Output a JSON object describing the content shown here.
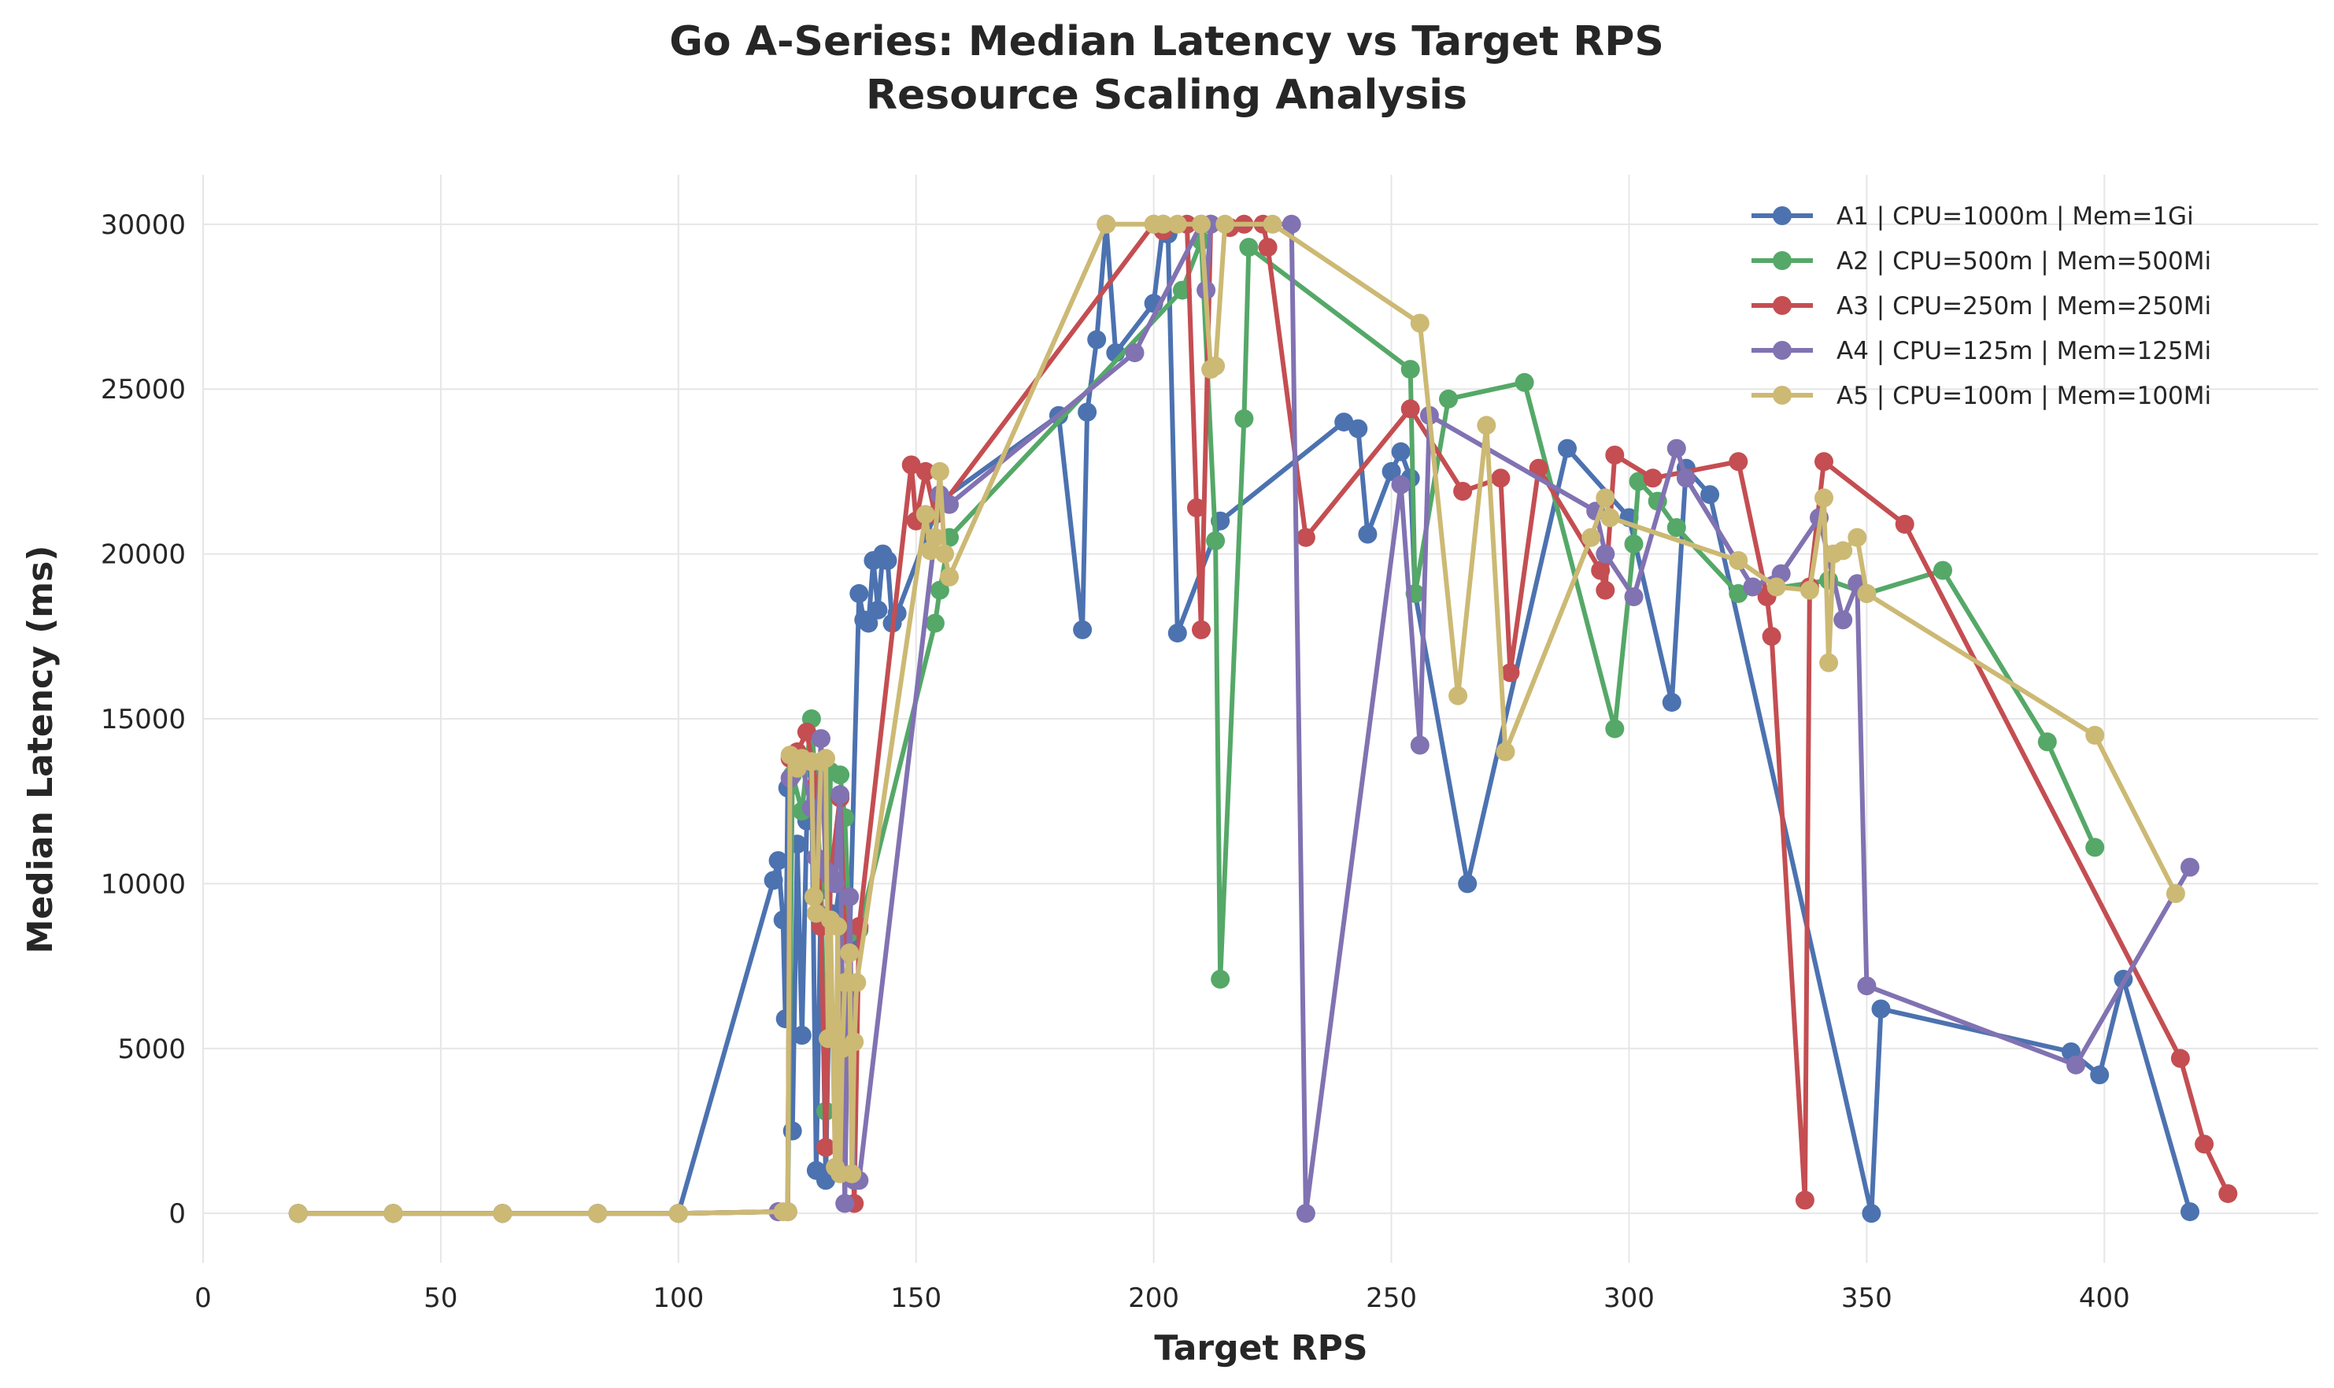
{
  "chart_data": {
    "type": "line",
    "title": "Go A-Series: Median Latency vs Target RPS",
    "subtitle": "Resource Scaling Analysis",
    "xlabel": "Target RPS",
    "ylabel": "Median Latency (ms)",
    "xlim": [
      0,
      445
    ],
    "ylim": [
      -1500,
      31500
    ],
    "xticks": [
      "0",
      "50",
      "100",
      "150",
      "200",
      "250",
      "300",
      "350",
      "400"
    ],
    "yticks": [
      "0",
      "5000",
      "10000",
      "15000",
      "20000",
      "25000",
      "30000"
    ],
    "grid": true,
    "legend_position": "top-right",
    "series": [
      {
        "name": "A1 | CPU=1000m | Mem=1Gi",
        "color": "#4c72b0",
        "points": [
          [
            20,
            0
          ],
          [
            40,
            0
          ],
          [
            63,
            0
          ],
          [
            83,
            0
          ],
          [
            100,
            0
          ],
          [
            120,
            10100
          ],
          [
            121,
            10700
          ],
          [
            122,
            8900
          ],
          [
            122.5,
            5900
          ],
          [
            123,
            12900
          ],
          [
            124,
            2500
          ],
          [
            125,
            11200
          ],
          [
            126,
            5400
          ],
          [
            127,
            11900
          ],
          [
            128,
            13500
          ],
          [
            129,
            1300
          ],
          [
            130,
            9800
          ],
          [
            131,
            1000
          ],
          [
            132,
            9100
          ],
          [
            133,
            9000
          ],
          [
            134,
            10000
          ],
          [
            135,
            8300
          ],
          [
            136,
            8200
          ],
          [
            138,
            18800
          ],
          [
            139,
            18000
          ],
          [
            140,
            17900
          ],
          [
            141,
            19800
          ],
          [
            142,
            18300
          ],
          [
            143,
            20000
          ],
          [
            144,
            19800
          ],
          [
            145,
            17900
          ],
          [
            146,
            18200
          ],
          [
            155,
            21600
          ],
          [
            180,
            24200
          ],
          [
            185,
            17700
          ],
          [
            186,
            24300
          ],
          [
            188,
            26500
          ],
          [
            190,
            30000
          ],
          [
            192,
            26100
          ],
          [
            200,
            27600
          ],
          [
            202,
            30000
          ],
          [
            203,
            29700
          ],
          [
            205,
            17600
          ],
          [
            214,
            21000
          ],
          [
            240,
            24000
          ],
          [
            243,
            23800
          ],
          [
            245,
            20600
          ],
          [
            250,
            22500
          ],
          [
            252,
            23100
          ],
          [
            254,
            22300
          ],
          [
            255,
            18800
          ],
          [
            266,
            10000
          ],
          [
            287,
            23200
          ],
          [
            300,
            21100
          ],
          [
            309,
            15500
          ],
          [
            312,
            22600
          ],
          [
            317,
            21800
          ],
          [
            351,
            0
          ],
          [
            353,
            6200
          ],
          [
            393,
            4900
          ],
          [
            399,
            4200
          ],
          [
            404,
            7100
          ],
          [
            418,
            50
          ]
        ]
      },
      {
        "name": "A2 | CPU=500m | Mem=500Mi",
        "color": "#55a868",
        "points": [
          [
            20,
            0
          ],
          [
            40,
            0
          ],
          [
            63,
            0
          ],
          [
            83,
            0
          ],
          [
            100,
            0
          ],
          [
            121,
            50
          ],
          [
            123,
            50
          ],
          [
            124,
            13300
          ],
          [
            126,
            12200
          ],
          [
            128,
            15000
          ],
          [
            130,
            10100
          ],
          [
            131,
            3100
          ],
          [
            132,
            13400
          ],
          [
            134,
            13300
          ],
          [
            135,
            12000
          ],
          [
            136,
            8500
          ],
          [
            138,
            8600
          ],
          [
            154,
            17900
          ],
          [
            155,
            18900
          ],
          [
            157,
            20500
          ],
          [
            206,
            28000
          ],
          [
            210,
            29500
          ],
          [
            213,
            20400
          ],
          [
            214,
            7100
          ],
          [
            219,
            24100
          ],
          [
            220,
            29300
          ],
          [
            254,
            25600
          ],
          [
            255,
            18800
          ],
          [
            262,
            24700
          ],
          [
            278,
            25200
          ],
          [
            297,
            14700
          ],
          [
            301,
            20300
          ],
          [
            302,
            22200
          ],
          [
            306,
            21600
          ],
          [
            310,
            20800
          ],
          [
            323,
            18800
          ],
          [
            342,
            19200
          ],
          [
            350,
            18800
          ],
          [
            366,
            19500
          ],
          [
            388,
            14300
          ],
          [
            398,
            11100
          ]
        ]
      },
      {
        "name": "A3 | CPU=250m | Mem=250Mi",
        "color": "#c44e52",
        "points": [
          [
            20,
            0
          ],
          [
            40,
            0
          ],
          [
            63,
            0
          ],
          [
            83,
            0
          ],
          [
            100,
            0
          ],
          [
            121,
            50
          ],
          [
            123,
            50
          ],
          [
            123.5,
            13800
          ],
          [
            125,
            14000
          ],
          [
            127,
            14600
          ],
          [
            129,
            13000
          ],
          [
            130,
            8700
          ],
          [
            131,
            2000
          ],
          [
            132,
            10200
          ],
          [
            134,
            12600
          ],
          [
            135,
            8600
          ],
          [
            136,
            6800
          ],
          [
            137,
            300
          ],
          [
            138,
            8700
          ],
          [
            149,
            22700
          ],
          [
            150,
            21000
          ],
          [
            152,
            22500
          ],
          [
            154,
            21200
          ],
          [
            200,
            30000
          ],
          [
            202,
            29800
          ],
          [
            207,
            30000
          ],
          [
            209,
            21400
          ],
          [
            210,
            17700
          ],
          [
            212,
            30000
          ],
          [
            216,
            29900
          ],
          [
            219,
            30000
          ],
          [
            223,
            30000
          ],
          [
            224,
            29300
          ],
          [
            232,
            20500
          ],
          [
            254,
            24400
          ],
          [
            265,
            21900
          ],
          [
            273,
            22300
          ],
          [
            275,
            16400
          ],
          [
            281,
            22600
          ],
          [
            294,
            19500
          ],
          [
            295,
            18900
          ],
          [
            297,
            23000
          ],
          [
            305,
            22300
          ],
          [
            323,
            22800
          ],
          [
            329,
            18700
          ],
          [
            330,
            17500
          ],
          [
            337,
            400
          ],
          [
            338,
            19000
          ],
          [
            341,
            22800
          ],
          [
            358,
            20900
          ],
          [
            416,
            4700
          ],
          [
            421,
            2100
          ],
          [
            426,
            600
          ]
        ]
      },
      {
        "name": "A4 | CPU=125m | Mem=125Mi",
        "color": "#8172b2",
        "points": [
          [
            20,
            0
          ],
          [
            40,
            0
          ],
          [
            63,
            0
          ],
          [
            83,
            0
          ],
          [
            100,
            0
          ],
          [
            121,
            50
          ],
          [
            123,
            50
          ],
          [
            123.5,
            13200
          ],
          [
            126,
            13600
          ],
          [
            128,
            12300
          ],
          [
            129,
            10800
          ],
          [
            130,
            14400
          ],
          [
            131,
            10400
          ],
          [
            132,
            10200
          ],
          [
            133,
            10000
          ],
          [
            134,
            12700
          ],
          [
            135,
            300
          ],
          [
            136,
            9600
          ],
          [
            137,
            1000
          ],
          [
            138,
            1000
          ],
          [
            155,
            21800
          ],
          [
            157,
            21500
          ],
          [
            196,
            26100
          ],
          [
            210,
            30000
          ],
          [
            211,
            28000
          ],
          [
            212,
            30000
          ],
          [
            229,
            30000
          ],
          [
            232,
            0
          ],
          [
            252,
            22100
          ],
          [
            256,
            14200
          ],
          [
            258,
            24200
          ],
          [
            293,
            21300
          ],
          [
            295,
            20000
          ],
          [
            301,
            18700
          ],
          [
            310,
            23200
          ],
          [
            312,
            22300
          ],
          [
            326,
            19000
          ],
          [
            332,
            19400
          ],
          [
            340,
            21100
          ],
          [
            345,
            18000
          ],
          [
            348,
            19100
          ],
          [
            350,
            6900
          ],
          [
            394,
            4500
          ],
          [
            418,
            10500
          ]
        ]
      },
      {
        "name": "A5 | CPU=100m | Mem=100Mi",
        "color": "#ccb974",
        "points": [
          [
            20,
            0
          ],
          [
            40,
            0
          ],
          [
            63,
            0
          ],
          [
            83,
            0
          ],
          [
            100,
            0
          ],
          [
            122,
            50
          ],
          [
            123,
            50
          ],
          [
            123.5,
            13900
          ],
          [
            125,
            13500
          ],
          [
            126,
            13800
          ],
          [
            128,
            13700
          ],
          [
            128.5,
            9600
          ],
          [
            129,
            9100
          ],
          [
            130,
            13700
          ],
          [
            131,
            13800
          ],
          [
            131.5,
            5300
          ],
          [
            132,
            8900
          ],
          [
            133,
            1400
          ],
          [
            133.5,
            8700
          ],
          [
            134,
            1200
          ],
          [
            134.5,
            5000
          ],
          [
            135,
            7000
          ],
          [
            136,
            7900
          ],
          [
            136.5,
            1200
          ],
          [
            137,
            5200
          ],
          [
            137.5,
            7000
          ],
          [
            152,
            21200
          ],
          [
            153,
            20100
          ],
          [
            154,
            20500
          ],
          [
            155,
            22500
          ],
          [
            156,
            20000
          ],
          [
            157,
            19300
          ],
          [
            190,
            30000
          ],
          [
            200,
            30000
          ],
          [
            202,
            30000
          ],
          [
            205,
            30000
          ],
          [
            210,
            30000
          ],
          [
            212,
            25600
          ],
          [
            213,
            25700
          ],
          [
            215,
            30000
          ],
          [
            225,
            30000
          ],
          [
            256,
            27000
          ],
          [
            264,
            15700
          ],
          [
            270,
            23900
          ],
          [
            274,
            14000
          ],
          [
            292,
            20500
          ],
          [
            295,
            21700
          ],
          [
            296,
            21100
          ],
          [
            323,
            19800
          ],
          [
            331,
            19000
          ],
          [
            338,
            18900
          ],
          [
            341,
            21700
          ],
          [
            342,
            16700
          ],
          [
            343,
            20000
          ],
          [
            345,
            20100
          ],
          [
            348,
            20500
          ],
          [
            350,
            18800
          ],
          [
            398,
            14500
          ],
          [
            415,
            9700
          ]
        ]
      }
    ]
  }
}
